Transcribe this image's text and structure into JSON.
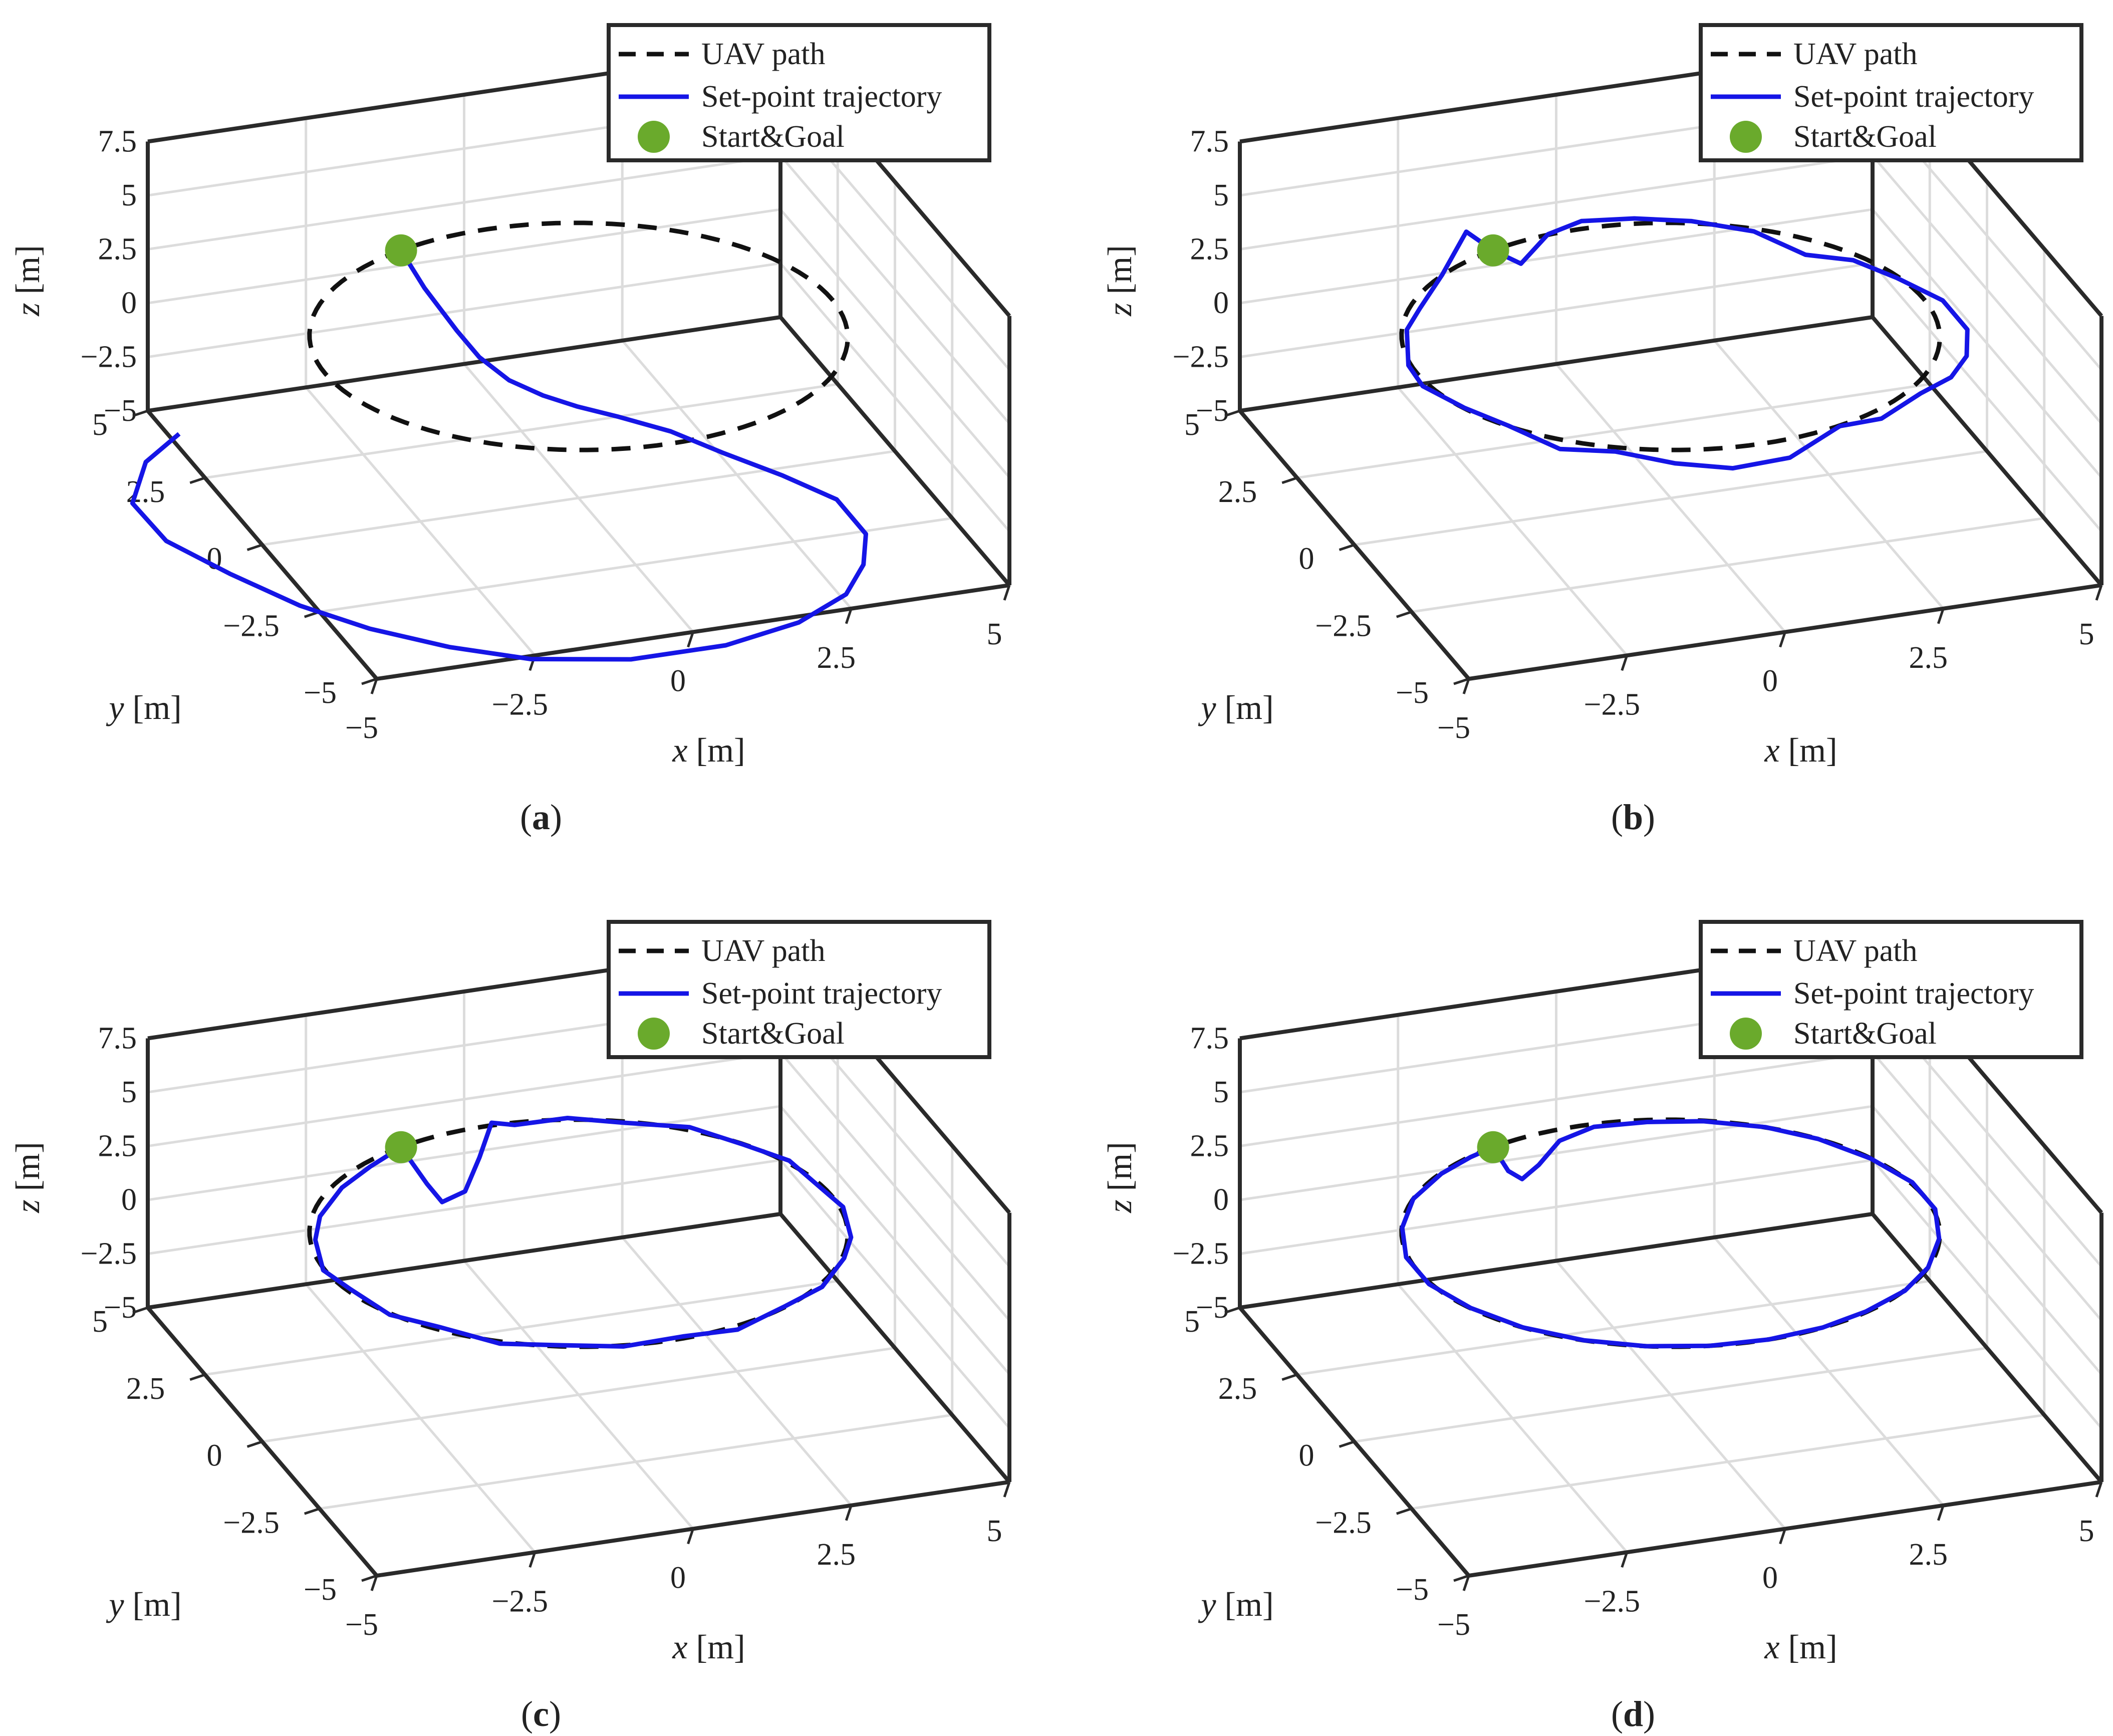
{
  "colors": {
    "uav_path": "#111111",
    "setpoint": "#1515e6",
    "start_goal": "#6aaa2c",
    "box": "#2a2a2a",
    "grid": "#dcdcdc",
    "text": "#222222"
  },
  "legend": {
    "uav_path": "UAV path",
    "setpoint": "Set-point trajectory",
    "start_goal": "Start&Goal"
  },
  "axis_labels": {
    "x_var": "x",
    "x_unit": "[m]",
    "y_var": "y",
    "y_unit": "[m]",
    "z_var": "z",
    "z_unit": "[m]"
  },
  "ticks": {
    "x": [
      "−5",
      "−2.5",
      "0",
      "2.5",
      "5"
    ],
    "y": [
      "−5",
      "−2.5",
      "0",
      "2.5",
      "5"
    ],
    "z": [
      "−5",
      "−2.5",
      "0",
      "2.5",
      "5",
      "7.5"
    ]
  },
  "chart_data": [
    {
      "panel": "(a)",
      "type": "line3d",
      "xlabel": "x [m]",
      "ylabel": "y [m]",
      "zlabel": "z [m]",
      "xlim": [
        -5,
        5
      ],
      "ylim": [
        -5,
        5
      ],
      "zlim": [
        -5,
        7.5
      ],
      "uav_path": {
        "shape": "circle",
        "center": [
          0,
          0
        ],
        "radius": 4,
        "z": 2.5
      },
      "start_goal": [
        -1.46,
        3.72,
        2.5
      ],
      "setpoint_trajectory": [
        [
          -1.46,
          3.72,
          2.5
        ],
        [
          -1.35,
          3.0,
          1.6
        ],
        [
          -1.2,
          2.0,
          0.8
        ],
        [
          -1.1,
          1.3,
          0.4
        ],
        [
          -0.7,
          1.1,
          -0.6
        ],
        [
          -0.2,
          1.0,
          -1.4
        ],
        [
          0.3,
          0.9,
          -2.0
        ],
        [
          0.9,
          0.8,
          -2.6
        ],
        [
          1.6,
          0.4,
          -3.1
        ],
        [
          2.2,
          -0.2,
          -3.6
        ],
        [
          2.9,
          -0.9,
          -4.1
        ],
        [
          3.5,
          -1.6,
          -4.6
        ],
        [
          3.6,
          -2.6,
          -5.0
        ],
        [
          3.2,
          -3.6,
          -5.0
        ],
        [
          2.6,
          -4.5,
          -5.0
        ],
        [
          1.6,
          -5.2,
          -5.0
        ],
        [
          0.3,
          -5.6,
          -5.0
        ],
        [
          -1.2,
          -5.6,
          -5.0
        ],
        [
          -2.6,
          -5.1,
          -5.0
        ],
        [
          -3.6,
          -4.3,
          -5.0
        ],
        [
          -4.5,
          -3.3,
          -5.0
        ],
        [
          -5.2,
          -2.2,
          -5.0
        ],
        [
          -5.8,
          -0.8,
          -5.0
        ],
        [
          -6.3,
          0.6,
          -5.0
        ],
        [
          -6.4,
          1.8,
          -4.7
        ],
        [
          -5.9,
          2.6,
          -4.0
        ],
        [
          -5.3,
          2.8,
          -3.2
        ]
      ]
    },
    {
      "panel": "(b)",
      "type": "line3d",
      "xlabel": "x [m]",
      "ylabel": "y [m]",
      "zlabel": "z [m]",
      "xlim": [
        -5,
        5
      ],
      "ylim": [
        -5,
        5
      ],
      "zlim": [
        -5,
        7.5
      ],
      "uav_path": {
        "shape": "circle",
        "center": [
          0,
          0
        ],
        "radius": 4,
        "z": 2.5
      },
      "start_goal": [
        -1.46,
        3.72,
        2.5
      ],
      "setpoint_trajectory": [
        [
          -1.46,
          3.72,
          2.5
        ],
        [
          -1.1,
          3.5,
          2.0
        ],
        [
          -0.6,
          3.7,
          2.9
        ],
        [
          0,
          3.9,
          3.0
        ],
        [
          0.8,
          3.8,
          2.9
        ],
        [
          1.6,
          3.5,
          2.8
        ],
        [
          2.4,
          3.0,
          2.6
        ],
        [
          3.0,
          2.4,
          2.0
        ],
        [
          3.5,
          1.7,
          2.4
        ],
        [
          3.9,
          0.9,
          2.4
        ],
        [
          4.3,
          0.0,
          2.3
        ],
        [
          4.4,
          -0.8,
          1.9
        ],
        [
          4.1,
          -1.6,
          1.8
        ],
        [
          3.6,
          -2.3,
          1.9
        ],
        [
          2.9,
          -2.9,
          2.2
        ],
        [
          2.1,
          -3.4,
          2.0
        ],
        [
          1.3,
          -3.8,
          2.5
        ],
        [
          0.4,
          -4.1,
          1.8
        ],
        [
          -0.5,
          -4.1,
          1.7
        ],
        [
          -1.3,
          -3.8,
          1.9
        ],
        [
          -2.1,
          -3.4,
          2.3
        ],
        [
          -2.8,
          -2.9,
          2.1
        ],
        [
          -3.4,
          -2.3,
          2.7
        ],
        [
          -3.8,
          -1.5,
          2.7
        ],
        [
          -4.1,
          -0.5,
          2.6
        ],
        [
          -4.0,
          0.4,
          2.4
        ],
        [
          -3.7,
          1.3,
          2.8
        ],
        [
          -3.2,
          2.1,
          2.6
        ],
        [
          -2.6,
          2.8,
          3.0
        ],
        [
          -2.0,
          3.4,
          4.0
        ],
        [
          -1.46,
          3.72,
          2.5
        ]
      ]
    },
    {
      "panel": "(c)",
      "type": "line3d",
      "xlabel": "x [m]",
      "ylabel": "y [m]",
      "zlabel": "z [m]",
      "xlim": [
        -5,
        5
      ],
      "ylim": [
        -5,
        5
      ],
      "zlim": [
        -5,
        7.5
      ],
      "uav_path": {
        "shape": "circle",
        "center": [
          0,
          0
        ],
        "radius": 4,
        "z": 2.5
      },
      "start_goal": [
        -1.46,
        3.72,
        2.5
      ],
      "setpoint_trajectory": [
        [
          -1.46,
          3.72,
          2.5
        ],
        [
          -1.2,
          3.3,
          1.2
        ],
        [
          -1.0,
          3.2,
          0.4
        ],
        [
          -0.6,
          3.3,
          0.6
        ],
        [
          -0.3,
          3.5,
          1.8
        ],
        [
          0,
          3.8,
          2.9
        ],
        [
          0.4,
          3.9,
          2.5
        ],
        [
          1.2,
          3.8,
          2.6
        ],
        [
          2.0,
          3.5,
          2.4
        ],
        [
          2.8,
          2.9,
          2.6
        ],
        [
          3.4,
          2.2,
          2.4
        ],
        [
          3.8,
          1.3,
          2.6
        ],
        [
          4.0,
          0.4,
          2.3
        ],
        [
          4.0,
          -0.5,
          2.6
        ],
        [
          3.8,
          -1.4,
          2.4
        ],
        [
          3.4,
          -2.2,
          2.6
        ],
        [
          2.8,
          -2.9,
          2.4
        ],
        [
          2.0,
          -3.5,
          2.6
        ],
        [
          1.1,
          -3.9,
          2.4
        ],
        [
          0.2,
          -4.0,
          2.6
        ],
        [
          -0.7,
          -3.9,
          2.4
        ],
        [
          -1.6,
          -3.7,
          2.6
        ],
        [
          -2.4,
          -3.2,
          2.4
        ],
        [
          -3.1,
          -2.5,
          2.6
        ],
        [
          -3.6,
          -1.7,
          2.4
        ],
        [
          -3.9,
          -0.8,
          2.6
        ],
        [
          -4.0,
          0.1,
          2.4
        ],
        [
          -3.8,
          1.0,
          2.6
        ],
        [
          -3.4,
          1.9,
          2.4
        ],
        [
          -2.8,
          2.6,
          2.6
        ],
        [
          -2.1,
          3.3,
          2.4
        ],
        [
          -1.46,
          3.72,
          2.5
        ]
      ]
    },
    {
      "panel": "(d)",
      "type": "line3d",
      "xlabel": "x [m]",
      "ylabel": "y [m]",
      "zlabel": "z [m]",
      "xlim": [
        -5,
        5
      ],
      "ylim": [
        -5,
        5
      ],
      "zlim": [
        -5,
        7.5
      ],
      "uav_path": {
        "shape": "circle",
        "center": [
          0,
          0
        ],
        "radius": 4,
        "z": 2.5
      },
      "start_goal": [
        -1.46,
        3.72,
        2.5
      ],
      "setpoint_trajectory": [
        [
          -1.46,
          3.72,
          2.5
        ],
        [
          -1.3,
          3.5,
          1.6
        ],
        [
          -1.1,
          3.45,
          1.2
        ],
        [
          -0.8,
          3.55,
          1.6
        ],
        [
          -0.4,
          3.75,
          2.3
        ],
        [
          0.2,
          3.9,
          2.5
        ],
        [
          1.0,
          3.8,
          2.5
        ],
        [
          1.8,
          3.55,
          2.5
        ],
        [
          2.6,
          3.05,
          2.5
        ],
        [
          3.2,
          2.4,
          2.5
        ],
        [
          3.7,
          1.5,
          2.5
        ],
        [
          4.0,
          0.5,
          2.5
        ],
        [
          4.0,
          -0.5,
          2.5
        ],
        [
          3.7,
          -1.5,
          2.5
        ],
        [
          3.2,
          -2.4,
          2.5
        ],
        [
          2.6,
          -3.05,
          2.5
        ],
        [
          1.8,
          -3.55,
          2.5
        ],
        [
          1.0,
          -3.87,
          2.5
        ],
        [
          0.1,
          -4.0,
          2.5
        ],
        [
          -0.8,
          -3.92,
          2.5
        ],
        [
          -1.7,
          -3.62,
          2.5
        ],
        [
          -2.5,
          -3.12,
          2.5
        ],
        [
          -3.2,
          -2.4,
          2.5
        ],
        [
          -3.7,
          -1.5,
          2.5
        ],
        [
          -4.0,
          -0.5,
          2.5
        ],
        [
          -4.0,
          0.5,
          2.5
        ],
        [
          -3.7,
          1.5,
          2.5
        ],
        [
          -3.2,
          2.4,
          2.5
        ],
        [
          -2.5,
          3.1,
          2.5
        ],
        [
          -1.9,
          3.5,
          2.5
        ],
        [
          -1.46,
          3.72,
          2.5
        ]
      ]
    }
  ]
}
